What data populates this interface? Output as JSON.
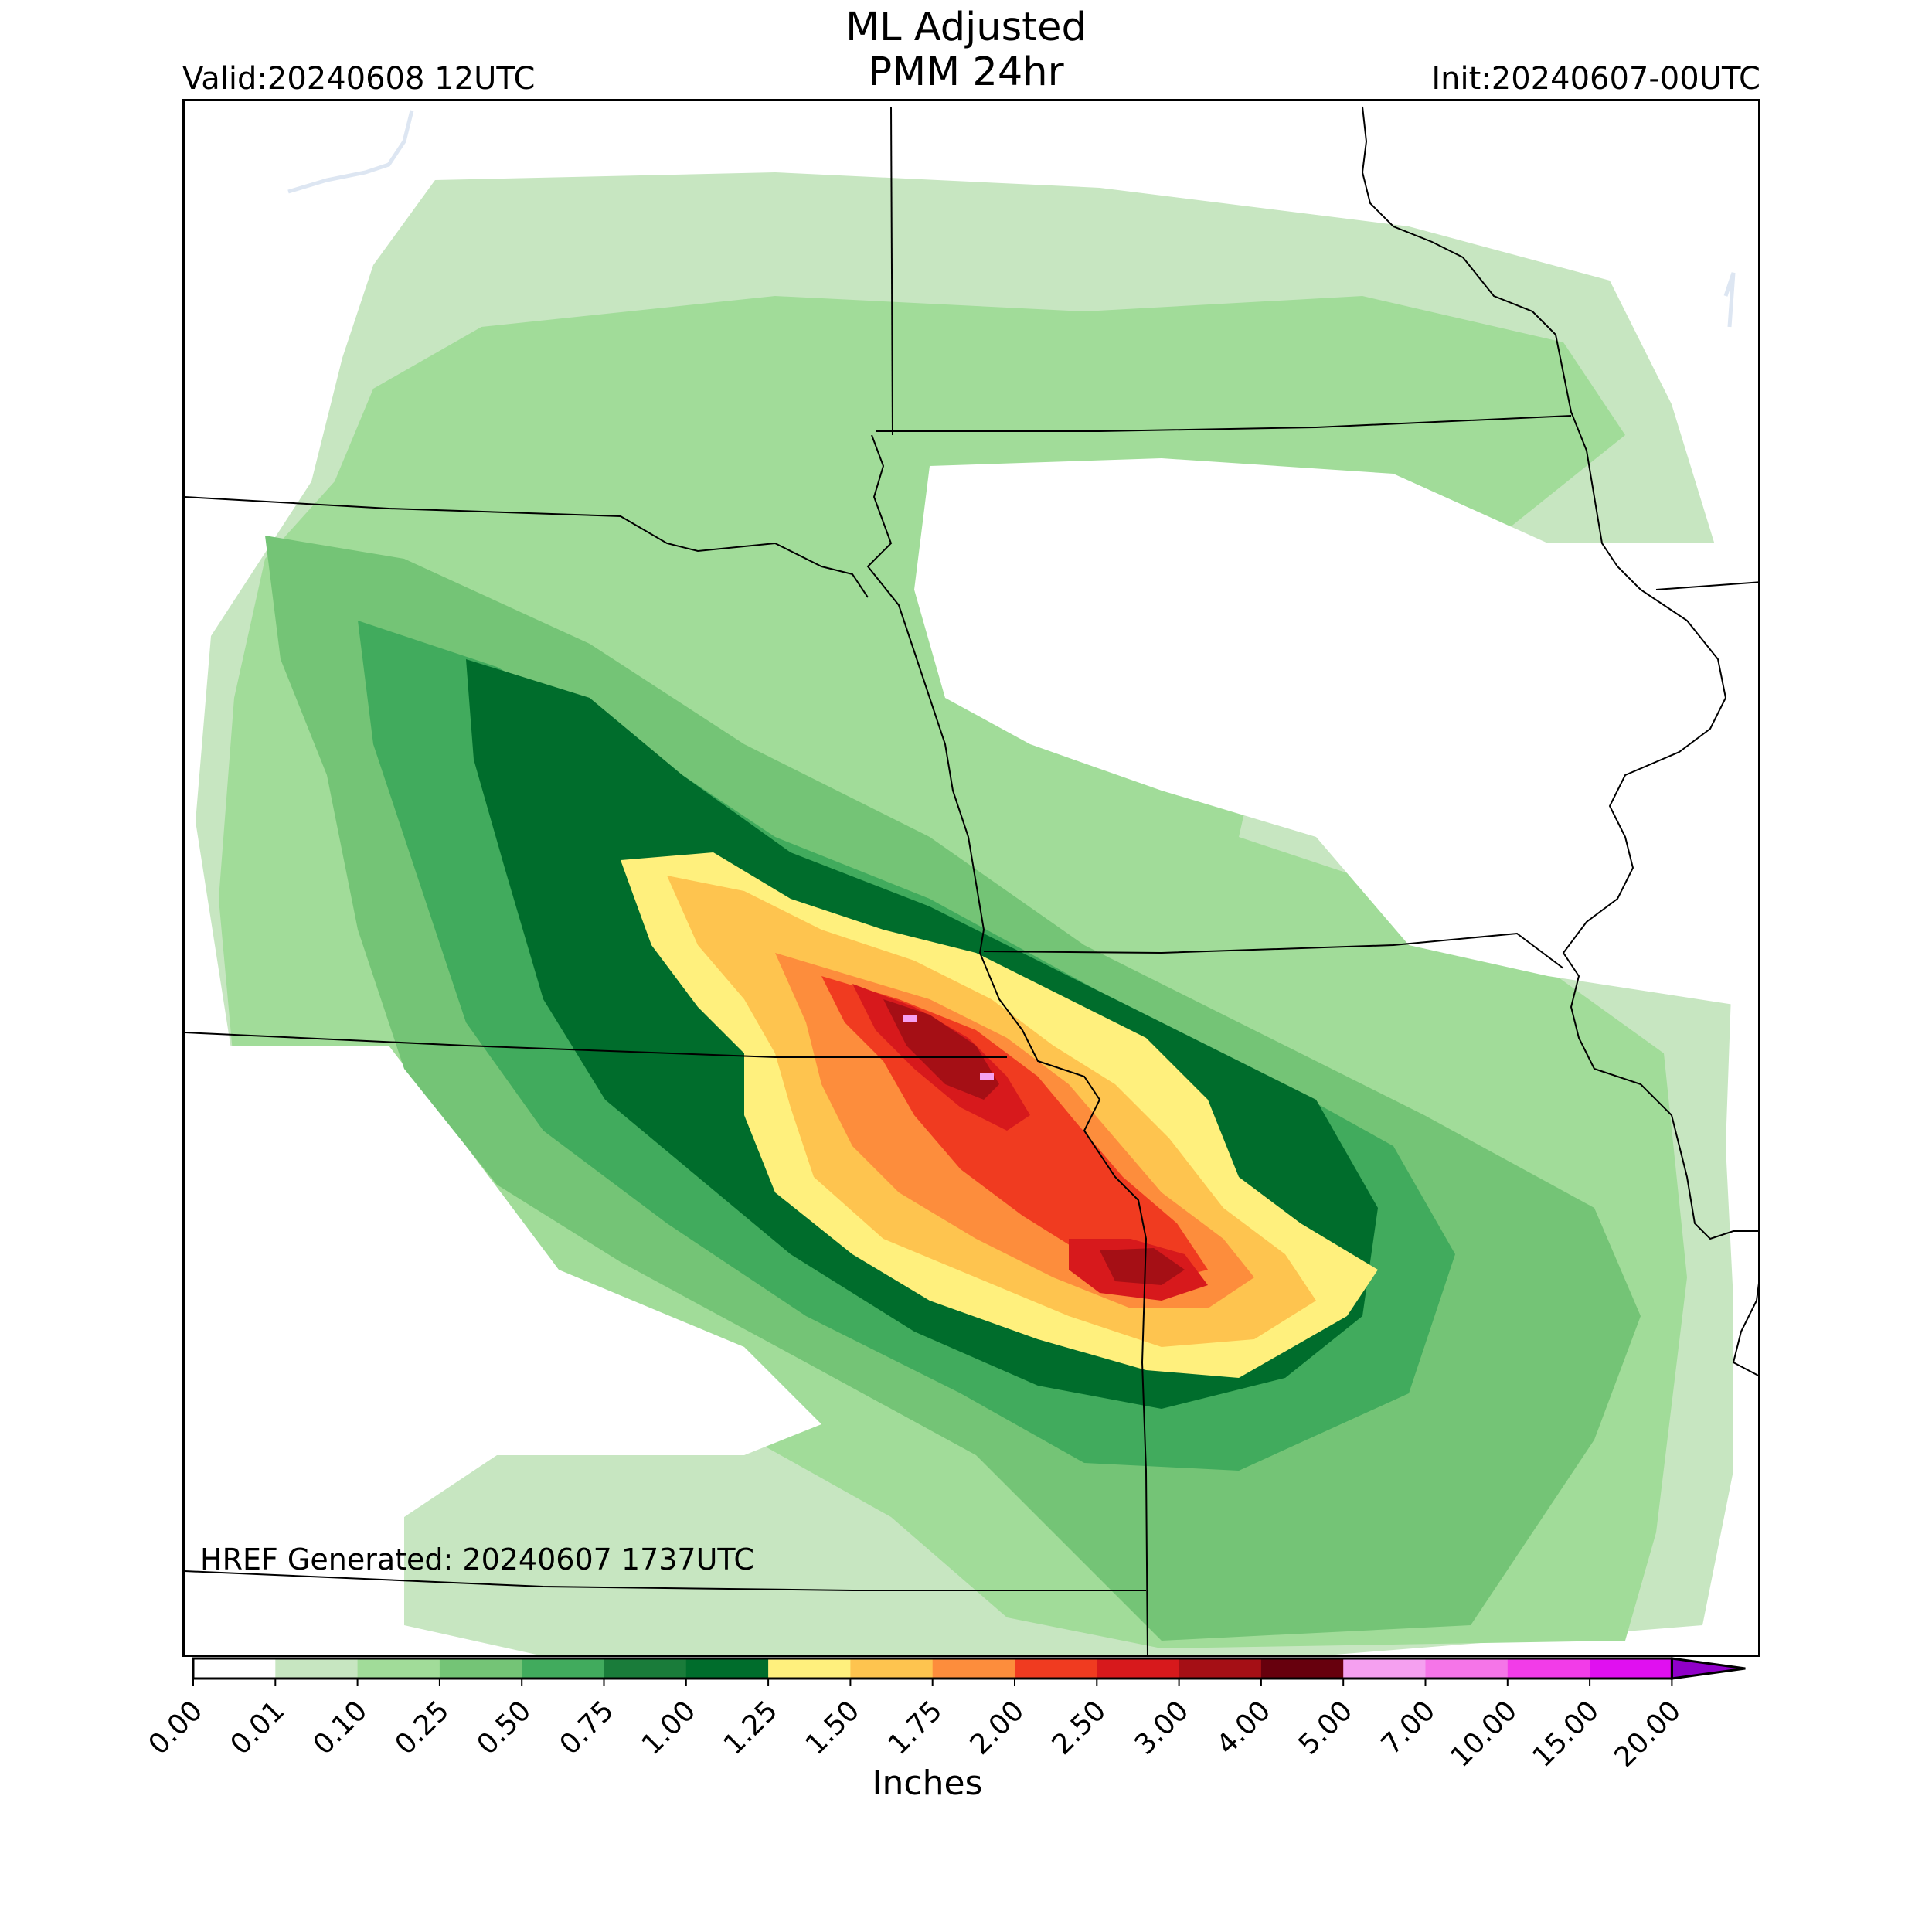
{
  "title": {
    "line1": "ML Adjusted",
    "line2": "PMM 24hr"
  },
  "valid": "Valid:20240608 12UTC",
  "init": "Init:20240607-00UTC",
  "generated": "HREF Generated: 20240607 1737UTC",
  "colorbar": {
    "label": "Inches",
    "ticks": [
      "0.00",
      "0.01",
      "0.10",
      "0.25",
      "0.50",
      "0.75",
      "1.00",
      "1.25",
      "1.50",
      "1.75",
      "2.00",
      "2.50",
      "3.00",
      "4.00",
      "5.00",
      "7.00",
      "10.00",
      "15.00",
      "20.00"
    ],
    "colors": [
      "#ffffff",
      "#c7e6c1",
      "#a1dc99",
      "#74c476",
      "#41ab5d",
      "#1a7c3a",
      "#006d2c",
      "#fff07d",
      "#fec44f",
      "#fd8d3c",
      "#f03b20",
      "#d7191c",
      "#a50f15",
      "#67000d",
      "#f5a0f0",
      "#f575e8",
      "#f23ce8",
      "#e010f0",
      "#9000c8"
    ],
    "extend": "max"
  }
}
